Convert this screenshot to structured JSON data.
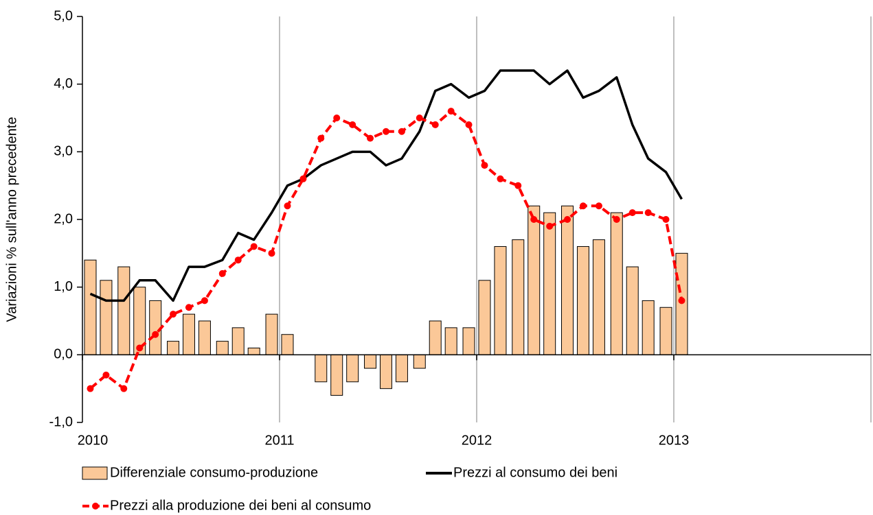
{
  "chart_data": {
    "type": "bar-line",
    "y_label": "Variazioni % sull'anno precedente",
    "x": [
      2010.04,
      2010.12,
      2010.21,
      2010.29,
      2010.37,
      2010.46,
      2010.54,
      2010.62,
      2010.71,
      2010.79,
      2010.87,
      2010.96,
      2011.04,
      2011.12,
      2011.21,
      2011.29,
      2011.37,
      2011.46,
      2011.54,
      2011.62,
      2011.71,
      2011.79,
      2011.87,
      2011.96,
      2012.04,
      2012.12,
      2012.21,
      2012.29,
      2012.37,
      2012.46,
      2012.54,
      2012.62,
      2012.71,
      2012.79,
      2012.87,
      2012.96,
      2013.04
    ],
    "series": [
      {
        "name": "Differenziale consumo-produzione",
        "type": "bar",
        "color": "#fbc898",
        "values": [
          1.4,
          1.1,
          1.3,
          1.0,
          0.8,
          0.2,
          0.6,
          0.5,
          0.2,
          0.4,
          0.1,
          0.6,
          0.3,
          0.0,
          -0.4,
          -0.6,
          -0.4,
          -0.2,
          -0.5,
          -0.4,
          -0.2,
          0.5,
          0.4,
          0.4,
          1.1,
          1.6,
          1.7,
          2.2,
          2.1,
          2.2,
          1.6,
          1.7,
          2.1,
          1.3,
          0.8,
          0.7,
          1.5
        ]
      },
      {
        "name": "Prezzi al consumo dei beni",
        "type": "line",
        "color": "#000000",
        "values": [
          0.9,
          0.8,
          0.8,
          1.1,
          1.1,
          0.8,
          1.3,
          1.3,
          1.4,
          1.8,
          1.7,
          2.1,
          2.5,
          2.6,
          2.8,
          2.9,
          3.0,
          3.0,
          2.8,
          2.9,
          3.3,
          3.9,
          4.0,
          3.8,
          3.9,
          4.2,
          4.2,
          4.2,
          4.0,
          4.2,
          3.8,
          3.9,
          4.1,
          3.4,
          2.9,
          2.7,
          2.3
        ]
      },
      {
        "name": "Prezzi alla produzione dei beni al consumo",
        "type": "line",
        "dashed": true,
        "markers": true,
        "color": "#ff0000",
        "values": [
          -0.5,
          -0.3,
          -0.5,
          0.1,
          0.3,
          0.6,
          0.7,
          0.8,
          1.2,
          1.4,
          1.6,
          1.5,
          2.2,
          2.6,
          3.2,
          3.5,
          3.4,
          3.2,
          3.3,
          3.3,
          3.5,
          3.4,
          3.6,
          3.4,
          2.8,
          2.6,
          2.5,
          2.0,
          1.9,
          2.0,
          2.2,
          2.2,
          2.0,
          2.1,
          2.1,
          2.0,
          0.8
        ]
      }
    ],
    "xlim": [
      2010,
      2014
    ],
    "xticks": [
      2010,
      2011,
      2012,
      2013
    ],
    "ylim": [
      -1,
      5
    ],
    "yticks": [
      {
        "value": -1,
        "label": "-1,0"
      },
      {
        "value": 0,
        "label": "0,0"
      },
      {
        "value": 1,
        "label": "1,0"
      },
      {
        "value": 2,
        "label": "2,0"
      },
      {
        "value": 3,
        "label": "3,0"
      },
      {
        "value": 4,
        "label": "4,0"
      },
      {
        "value": 5,
        "label": "5,0"
      }
    ],
    "grid": true
  }
}
